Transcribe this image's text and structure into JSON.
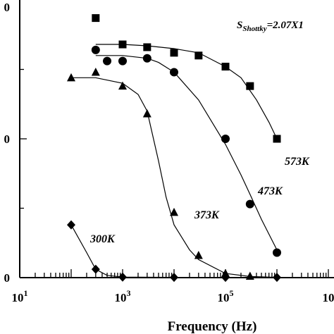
{
  "chart_data": {
    "type": "scatter",
    "xscale": "log",
    "xlim": [
      10,
      10000000
    ],
    "ylim": [
      0,
      1
    ],
    "grid": false,
    "xlabel": "Frequency (Hz)",
    "ylabel": "",
    "title": "",
    "x_tick_labels": [
      {
        "base": "10",
        "exp": "1"
      },
      {
        "base": "10",
        "exp": "3"
      },
      {
        "base": "10",
        "exp": "5"
      },
      {
        "base": "10",
        "exp": ""
      }
    ],
    "y_tick_labels": [
      "0",
      "0",
      "0"
    ],
    "annotation": {
      "main": "S",
      "sub": "Shottky",
      "rest": "=2.07X1"
    },
    "series": [
      {
        "name": "573K",
        "marker": "square",
        "x": [
          300,
          1000,
          3000,
          10000,
          30000,
          100000,
          300000,
          1000000
        ],
        "y": [
          0.935,
          0.84,
          0.83,
          0.81,
          0.8,
          0.76,
          0.69,
          0.5
        ]
      },
      {
        "name": "473K",
        "marker": "circle",
        "x": [
          300,
          500,
          1000,
          3000,
          10000,
          100000,
          300000,
          1000000
        ],
        "y": [
          0.82,
          0.78,
          0.78,
          0.79,
          0.74,
          0.5,
          0.265,
          0.09
        ]
      },
      {
        "name": "373K",
        "marker": "triangle",
        "x": [
          100,
          300,
          1000,
          3000,
          10000,
          30000,
          100000,
          300000
        ],
        "y": [
          0.72,
          0.74,
          0.69,
          0.59,
          0.235,
          0.08,
          0.015,
          0.005
        ]
      },
      {
        "name": "300K",
        "marker": "diamond",
        "x": [
          100,
          300,
          1000,
          10000,
          100000,
          1000000
        ],
        "y": [
          0.19,
          0.03,
          0.002,
          0.001,
          0.001,
          0.001
        ]
      }
    ],
    "fits": [
      {
        "series": "573K",
        "x": [
          300,
          1000,
          3000,
          10000,
          30000,
          100000,
          200000,
          400000,
          700000,
          1000000
        ],
        "y": [
          0.84,
          0.84,
          0.835,
          0.825,
          0.81,
          0.76,
          0.72,
          0.64,
          0.56,
          0.5
        ]
      },
      {
        "series": "473K",
        "x": [
          300,
          1000,
          3000,
          5000,
          10000,
          30000,
          100000,
          200000,
          300000,
          500000,
          1000000
        ],
        "y": [
          0.8,
          0.8,
          0.79,
          0.775,
          0.74,
          0.64,
          0.48,
          0.37,
          0.3,
          0.21,
          0.1
        ]
      },
      {
        "series": "373K",
        "x": [
          100,
          300,
          1000,
          2000,
          3000,
          5000,
          7000,
          10000,
          20000,
          30000,
          100000,
          300000,
          1000000
        ],
        "y": [
          0.72,
          0.72,
          0.7,
          0.66,
          0.6,
          0.42,
          0.29,
          0.19,
          0.1,
          0.065,
          0.015,
          0.004,
          0.001
        ]
      },
      {
        "series": "300K",
        "x": [
          100,
          200,
          300,
          500,
          1000,
          10000,
          1000000
        ],
        "y": [
          0.19,
          0.09,
          0.03,
          0.008,
          0.002,
          0.001,
          0.001
        ]
      }
    ]
  }
}
